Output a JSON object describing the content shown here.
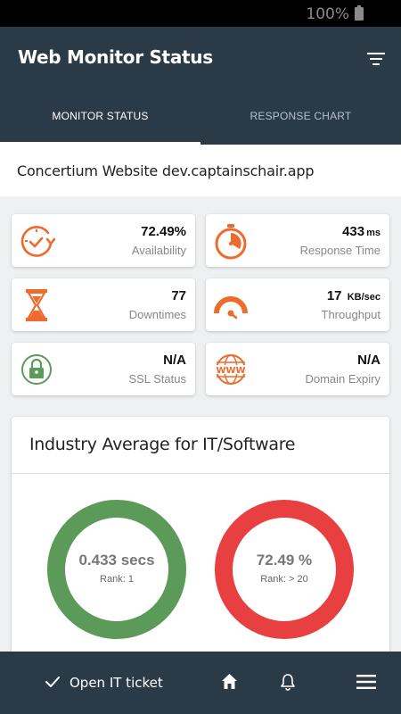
{
  "status_bar": {
    "battery_text": "100%"
  },
  "app_bar": {
    "title": "Web Monitor Status",
    "tabs": [
      {
        "label": "MONITOR STATUS",
        "active": true
      },
      {
        "label": "RESPONSE CHART",
        "active": false
      }
    ]
  },
  "site": {
    "name": "Concertium Website dev.captainschair.app"
  },
  "metrics": {
    "availability": {
      "value": "72.49%",
      "label": "Availability",
      "icon": "availability-clock-icon"
    },
    "response_time": {
      "value": "433",
      "unit": "ms",
      "label": "Response Time",
      "icon": "stopwatch-icon"
    },
    "downtimes": {
      "value": "77",
      "label": "Downtimes",
      "icon": "hourglass-icon"
    },
    "throughput": {
      "value": "17",
      "unit": "KB/sec",
      "label": "Throughput",
      "icon": "gauge-icon"
    },
    "ssl": {
      "value": "N/A",
      "label": "SSL Status",
      "icon": "lock-icon"
    },
    "domain_expiry": {
      "value": "N/A",
      "label": "Domain Expiry",
      "icon": "www-globe-icon"
    }
  },
  "industry": {
    "title": "Industry Average for IT/Software",
    "rings": [
      {
        "value": "0.433 secs",
        "rank_label": "Rank:",
        "rank": "1",
        "color": "#5b9a58"
      },
      {
        "value": "72.49 %",
        "rank_label": "Rank:",
        "rank": "> 20",
        "color": "#e84040"
      }
    ]
  },
  "bottom_bar": {
    "ticket_label": "Open IT ticket"
  },
  "colors": {
    "primary": "#2b3a47",
    "accent": "#ee6a2d",
    "ssl_green": "#5b9a58"
  }
}
